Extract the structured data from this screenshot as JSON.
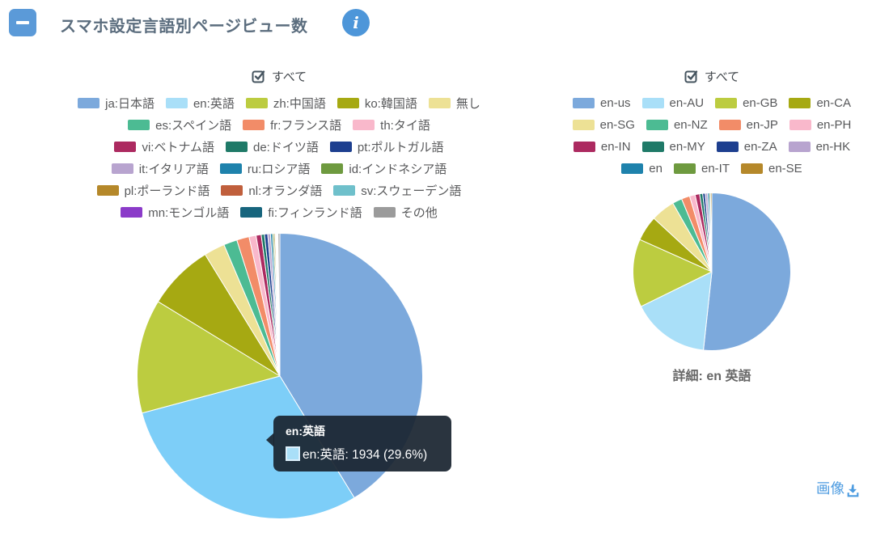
{
  "header": {
    "title": "スマホ設定言語別ページビュー数",
    "info_glyph": "i"
  },
  "footer": {
    "image_link_label": "画像"
  },
  "chart_data": [
    {
      "type": "pie",
      "title": "すべて",
      "select_all_checked": true,
      "legend_position": "top",
      "hover_color": "#7DCEF8",
      "slices": [
        {
          "label": "ja:日本語",
          "value": 2700,
          "color": "#7CA9DC"
        },
        {
          "label": "en:英語",
          "value": 1934,
          "color": "#A9DFF8",
          "hovered": true
        },
        {
          "label": "zh:中国語",
          "value": 845,
          "color": "#BCCC40"
        },
        {
          "label": "ko:韓国語",
          "value": 490,
          "color": "#A6A912"
        },
        {
          "label": "無し",
          "value": 155,
          "color": "#EDE195"
        },
        {
          "label": "es:スペイン語",
          "value": 100,
          "color": "#4CBB93"
        },
        {
          "label": "fr:フランス語",
          "value": 92,
          "color": "#F28C68"
        },
        {
          "label": "th:タイ語",
          "value": 52,
          "color": "#F9B8CB"
        },
        {
          "label": "vi:ベトナム語",
          "value": 38,
          "color": "#AC2A60"
        },
        {
          "label": "de:ドイツ語",
          "value": 24,
          "color": "#1F7A68"
        },
        {
          "label": "pt:ポルトガル語",
          "value": 24,
          "color": "#1D3F8F"
        },
        {
          "label": "it:イタリア語",
          "value": 20,
          "color": "#B8A4CF"
        },
        {
          "label": "ru:ロシア語",
          "value": 15,
          "color": "#1E82AC"
        },
        {
          "label": "id:インドネシア語",
          "value": 11,
          "color": "#6E9A3F"
        },
        {
          "label": "pl:ポーランド語",
          "value": 9,
          "color": "#B5882A"
        },
        {
          "label": "nl:オランダ語",
          "value": 6,
          "color": "#C05F3C"
        },
        {
          "label": "sv:スウェーデン語",
          "value": 6,
          "color": "#6FC0CB"
        },
        {
          "label": "mn:モンゴル語",
          "value": 5,
          "color": "#8B3BC9"
        },
        {
          "label": "fi:フィンランド語",
          "value": 4,
          "color": "#17657D"
        },
        {
          "label": "その他",
          "value": 13,
          "color": "#9B9B9B"
        }
      ],
      "legend_rows": [
        [
          0,
          1,
          2,
          3,
          4
        ],
        [
          5,
          6,
          7
        ],
        [
          8,
          9,
          10
        ],
        [
          11,
          12,
          13
        ],
        [
          14,
          15,
          16
        ],
        [
          17,
          18,
          19
        ]
      ],
      "tooltip": {
        "title": "en:英語",
        "text": "en:英語: 1934 (29.6%)",
        "value": 1934,
        "percent": "29.6%",
        "swatch_color": "#A9DFF8"
      }
    },
    {
      "type": "pie",
      "title": "すべて",
      "select_all_checked": true,
      "legend_position": "top",
      "caption": "詳細: en 英語",
      "slices": [
        {
          "label": "en-us",
          "value": 1000,
          "color": "#7CA9DC"
        },
        {
          "label": "en-AU",
          "value": 310,
          "color": "#A9DFF8"
        },
        {
          "label": "en-GB",
          "value": 270,
          "color": "#BCCC40"
        },
        {
          "label": "en-CA",
          "value": 100,
          "color": "#A6A912"
        },
        {
          "label": "en-SG",
          "value": 95,
          "color": "#EDE195"
        },
        {
          "label": "en-NZ",
          "value": 38,
          "color": "#4CBB93"
        },
        {
          "label": "en-JP",
          "value": 33,
          "color": "#F28C68"
        },
        {
          "label": "en-PH",
          "value": 22,
          "color": "#F9B8CB"
        },
        {
          "label": "en-IN",
          "value": 18,
          "color": "#AC2A60"
        },
        {
          "label": "en-MY",
          "value": 12,
          "color": "#1F7A68"
        },
        {
          "label": "en-ZA",
          "value": 10,
          "color": "#1D3F8F"
        },
        {
          "label": "en-HK",
          "value": 9,
          "color": "#B8A4CF"
        },
        {
          "label": "en",
          "value": 7,
          "color": "#1E82AC"
        },
        {
          "label": "en-IT",
          "value": 5,
          "color": "#6E9A3F"
        },
        {
          "label": "en-SE",
          "value": 5,
          "color": "#B5882A"
        }
      ],
      "legend_rows": [
        [
          0,
          1,
          2,
          3
        ],
        [
          4,
          5,
          6,
          7
        ],
        [
          8,
          9,
          10,
          11
        ],
        [
          12,
          13,
          14
        ]
      ]
    }
  ]
}
